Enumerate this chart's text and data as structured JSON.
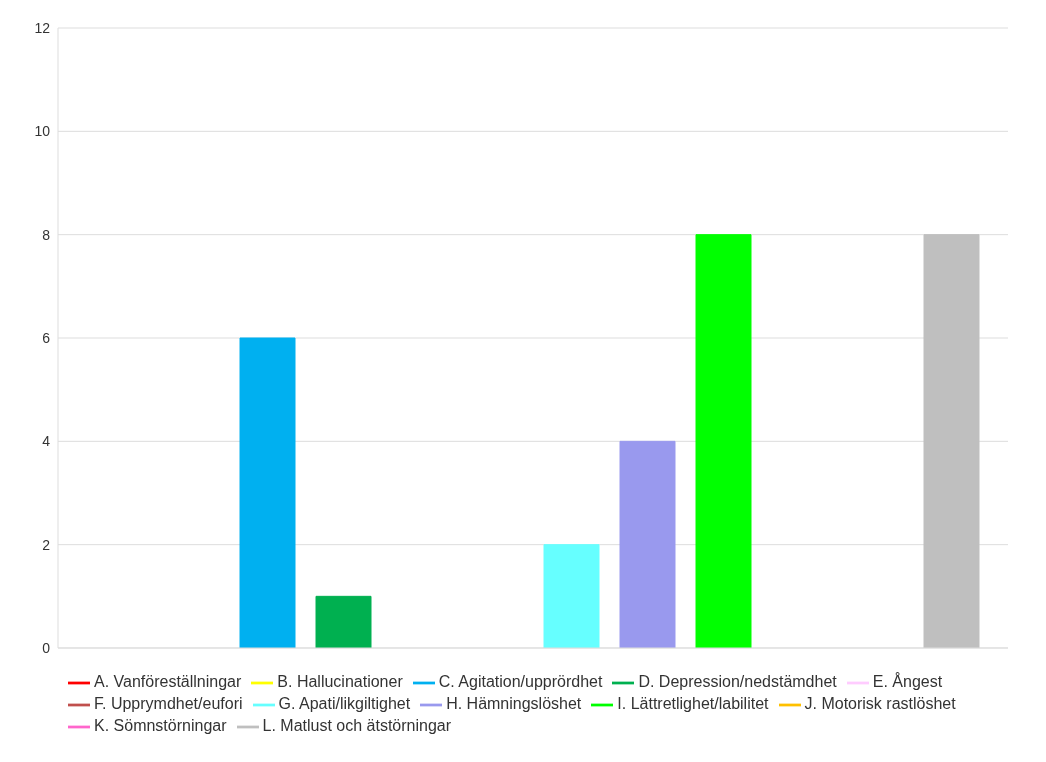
{
  "chart_data": {
    "type": "bar",
    "categories": [
      null
    ],
    "series": [
      {
        "name": "A. Vanföreställningar",
        "color": "#ff0000",
        "values": [
          0
        ]
      },
      {
        "name": "B. Hallucinationer",
        "color": "#ffff00",
        "values": [
          0
        ]
      },
      {
        "name": "C. Agitation/upprördhet",
        "color": "#00b0f0",
        "values": [
          6
        ]
      },
      {
        "name": "D. Depression/nedstämdhet",
        "color": "#00b050",
        "values": [
          1
        ]
      },
      {
        "name": "E. Ångest",
        "color": "#ffccff",
        "values": [
          0
        ]
      },
      {
        "name": "F. Upprymdhet/eufori",
        "color": "#c0504d",
        "values": [
          0
        ]
      },
      {
        "name": "G. Apati/likgiltighet",
        "color": "#66ffff",
        "values": [
          2
        ]
      },
      {
        "name": "H. Hämningslöshet",
        "color": "#9999ee",
        "values": [
          4
        ]
      },
      {
        "name": "I. Lättretlighet/labilitet",
        "color": "#00ff00",
        "values": [
          8
        ]
      },
      {
        "name": "J. Motorisk rastlöshet",
        "color": "#ffc000",
        "values": [
          0
        ]
      },
      {
        "name": "K. Sömnstörningar",
        "color": "#ff66cc",
        "values": [
          0
        ]
      },
      {
        "name": "L. Matlust och ätstörningar",
        "color": "#bfbfbf",
        "values": [
          8
        ]
      }
    ],
    "ylim": [
      0,
      12
    ],
    "yticks": [
      0,
      2,
      4,
      6,
      8,
      10,
      12
    ],
    "grid": "y",
    "legend": "bottom"
  }
}
